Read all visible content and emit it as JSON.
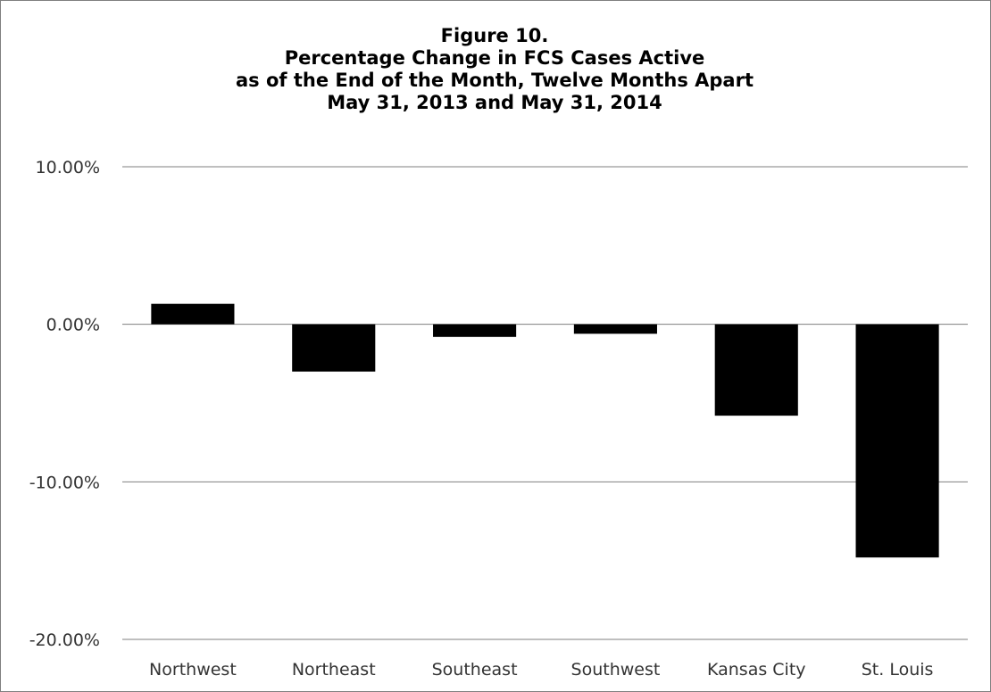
{
  "chart_data": {
    "type": "bar",
    "title_lines": [
      "Figure 10.",
      "Percentage Change in FCS Cases Active",
      "as of the End of the Month, Twelve Months Apart",
      "May 31, 2013 and May 31, 2014"
    ],
    "categories": [
      "Northwest",
      "Northeast",
      "Southeast",
      "Southwest",
      "Kansas City",
      "St. Louis"
    ],
    "values": [
      1.3,
      -3.0,
      -0.8,
      -0.6,
      -5.8,
      -14.8
    ],
    "value_unit": "%",
    "ylim": [
      -20,
      10
    ],
    "yticks": [
      10,
      0,
      -10,
      -20
    ],
    "ytick_labels": [
      "10.00%",
      "0.00%",
      "-10.00%",
      "-20.00%"
    ],
    "grid": true,
    "legend": "none",
    "bar_color": "#000000",
    "grid_color": "#7f7f7f"
  }
}
